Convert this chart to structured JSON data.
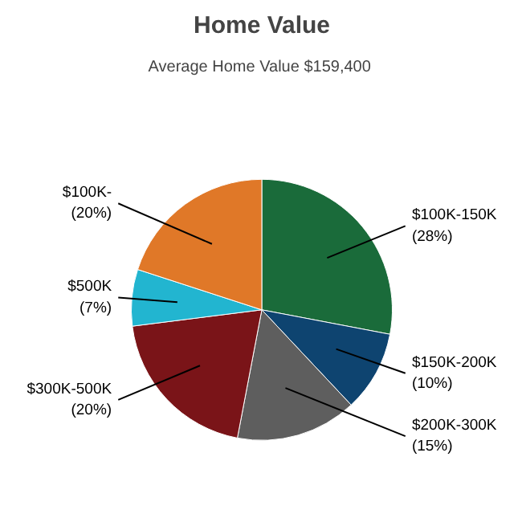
{
  "chart_data": {
    "type": "pie",
    "title": "Home Value",
    "subtitle": "Average Home Value  $159,400",
    "categories": [
      "$100K-150K",
      "$150K-200K",
      "$200K-300K",
      "$300K-500K",
      "$500K",
      "$100K-"
    ],
    "values": [
      28,
      10,
      15,
      20,
      7,
      20
    ],
    "value_labels": [
      "(28%)",
      "(10%)",
      "(15%)",
      "(20%)",
      "(7%)",
      "(20%)"
    ],
    "colors": [
      "#1a6b3a",
      "#0e4470",
      "#5e5e5e",
      "#7a1418",
      "#22b5d0",
      "#e07828"
    ],
    "legend": false
  }
}
